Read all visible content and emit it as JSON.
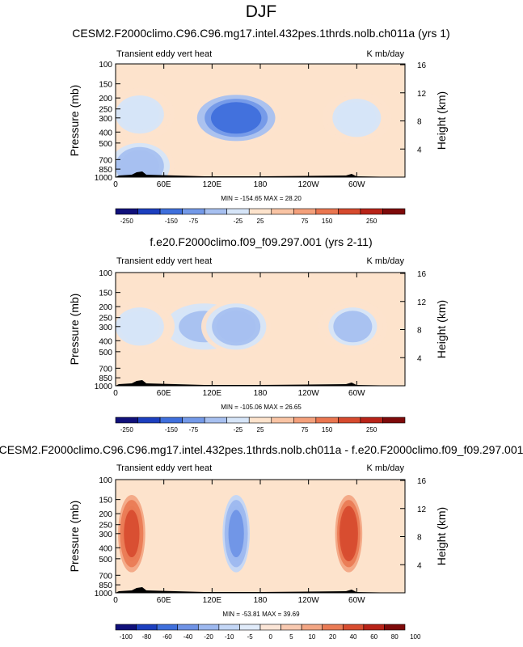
{
  "page": {
    "title": "DJF"
  },
  "colors": {
    "background_field": "#fde3cc",
    "terrain": "#000000",
    "abs_scale": [
      "#10107a",
      "#1c3fbf",
      "#3f6fdc",
      "#7399e8",
      "#a7c0f0",
      "#d6e5f8",
      "#fde3cc",
      "#f9c4a4",
      "#f4a07b",
      "#ea7650",
      "#d64a2e",
      "#b82318",
      "#7e0a0a"
    ],
    "diff_scale": [
      "#10107a",
      "#1c3fbf",
      "#3f6fdc",
      "#6f93e6",
      "#9db8ef",
      "#c3d6f6",
      "#e0ebfa",
      "#fbe5d6",
      "#f8c9b0",
      "#f3a684",
      "#ea7b55",
      "#d84d30",
      "#b82318",
      "#7e0a0a"
    ]
  },
  "chart_data": [
    {
      "type": "heatmap",
      "title": "CESM2.F2000climo.C96.C96.mg17.intel.432pes.1thrds.nolb.ch011a (yrs 1)",
      "left_label": "Transient eddy vert heat",
      "right_label": "K mb/day",
      "xlabel": "",
      "ylabel": "Pressure (mb)",
      "ylabel_right": "Height (km)",
      "x_ticks": [
        "0",
        "60E",
        "120E",
        "180",
        "120W",
        "60W"
      ],
      "y_ticks": [
        "100",
        "150",
        "200",
        "250",
        "300",
        "400",
        "500",
        "700",
        "850",
        "1000"
      ],
      "y_right_ticks": [
        "16",
        "12",
        "8",
        "4"
      ],
      "stats": "MIN = -154.65  MAX = 28.20",
      "colorbar_labels": [
        "-250",
        "-150",
        "-75",
        "-25",
        "25",
        "75",
        "150",
        "250"
      ],
      "colorbar": "abs",
      "features": [
        {
          "lon": 150,
          "p": 300,
          "value": -120
        },
        {
          "lon": 30,
          "p": 280,
          "value": -45
        },
        {
          "lon": 300,
          "p": 300,
          "value": -40
        },
        {
          "lon": 30,
          "p": 800,
          "value": -70
        }
      ]
    },
    {
      "type": "heatmap",
      "title": "f.e20.F2000climo.f09_f09.297.001 (yrs 2-11)",
      "left_label": "Transient eddy vert heat",
      "right_label": "K mb/day",
      "xlabel": "",
      "ylabel": "Pressure (mb)",
      "ylabel_right": "Height (km)",
      "x_ticks": [
        "0",
        "60E",
        "120E",
        "180",
        "120W",
        "60W"
      ],
      "y_ticks": [
        "100",
        "150",
        "200",
        "250",
        "300",
        "400",
        "500",
        "700",
        "850",
        "1000"
      ],
      "y_right_ticks": [
        "16",
        "12",
        "8",
        "4"
      ],
      "stats": "MIN = -105.06  MAX = 26.65",
      "colorbar_labels": [
        "-250",
        "-150",
        "-75",
        "-25",
        "25",
        "75",
        "150",
        "250"
      ],
      "colorbar": "abs",
      "features": [
        {
          "lon": 110,
          "p": 300,
          "value": -60
        },
        {
          "lon": 150,
          "p": 300,
          "value": -70
        },
        {
          "lon": 30,
          "p": 300,
          "value": -45
        },
        {
          "lon": 295,
          "p": 300,
          "value": -55
        }
      ]
    },
    {
      "type": "heatmap",
      "title": "CESM2.F2000climo.C96.C96.mg17.intel.432pes.1thrds.nolb.ch011a - f.e20.F2000climo.f09_f09.297.001",
      "left_label": "Transient eddy vert heat",
      "right_label": "K mb/day",
      "xlabel": "",
      "ylabel": "Pressure (mb)",
      "ylabel_right": "Height (km)",
      "x_ticks": [
        "0",
        "60E",
        "120E",
        "180",
        "120W",
        "60W"
      ],
      "y_ticks": [
        "100",
        "150",
        "200",
        "250",
        "300",
        "400",
        "500",
        "700",
        "850",
        "1000"
      ],
      "y_right_ticks": [
        "16",
        "12",
        "8",
        "4"
      ],
      "stats": "MIN = -53.81  MAX = 39.69",
      "colorbar_labels": [
        "-100",
        "-80",
        "-60",
        "-40",
        "-20",
        "-10",
        "-5",
        "0",
        "5",
        "10",
        "20",
        "40",
        "60",
        "80",
        "100"
      ],
      "colorbar": "diff",
      "features": [
        {
          "lon": 150,
          "p": 300,
          "value": -45
        },
        {
          "lon": 290,
          "p": 300,
          "value": 35
        },
        {
          "lon": 20,
          "p": 300,
          "value": 25
        }
      ]
    }
  ]
}
